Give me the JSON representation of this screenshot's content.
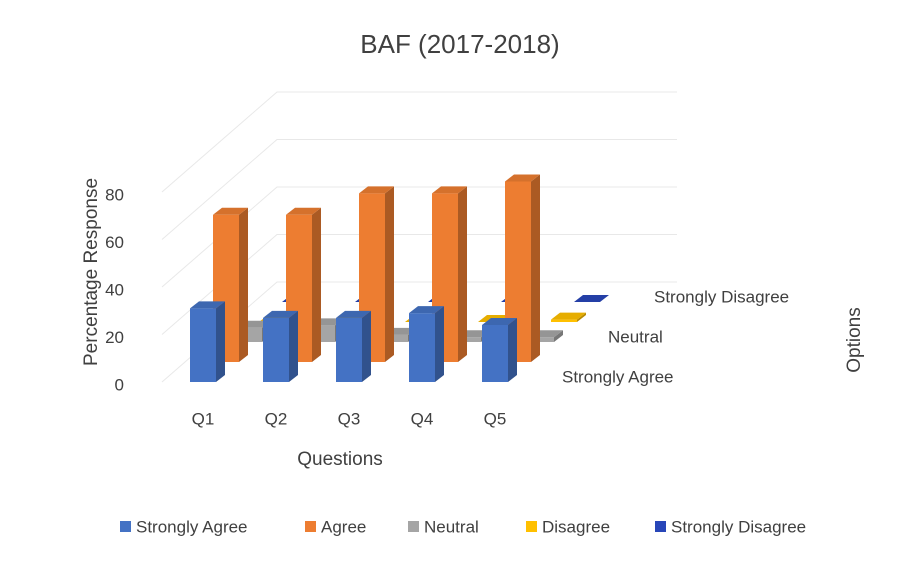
{
  "chart_data": {
    "type": "bar3d",
    "title": "BAF (2017-2018)",
    "categories": [
      "Q1",
      "Q2",
      "Q3",
      "Q4",
      "Q5"
    ],
    "series": [
      {
        "name": "Strongly Agree",
        "color": "#4472c4",
        "values": [
          31,
          27,
          27,
          29,
          24
        ]
      },
      {
        "name": "Agree",
        "color": "#ed7d31",
        "values": [
          62,
          62,
          71,
          71,
          76
        ]
      },
      {
        "name": "Neutral",
        "color": "#a5a5a5",
        "values": [
          6,
          7,
          3,
          2,
          2
        ]
      },
      {
        "name": "Disagree",
        "color": "#ffc000",
        "values": [
          0,
          0,
          0,
          0,
          1
        ]
      },
      {
        "name": "Strongly Disagree",
        "color": "#2846b8",
        "values": [
          0,
          0,
          0,
          0,
          0
        ]
      }
    ],
    "ylim": [
      0,
      80
    ],
    "yticks": [
      0,
      20,
      40,
      60,
      80
    ],
    "xlabel": "Questions",
    "ylabel": "Percentage Response",
    "zlabel": "Options",
    "grid": true,
    "legend": "bottom"
  }
}
